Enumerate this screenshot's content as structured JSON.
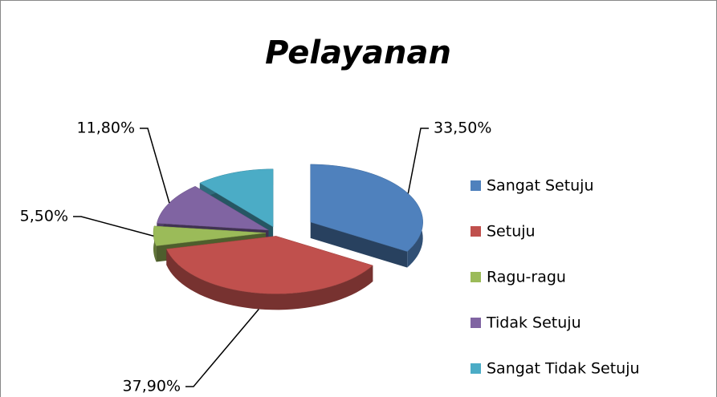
{
  "chart_data": {
    "type": "pie",
    "title": "Pelayanan",
    "categories": [
      "Sangat Setuju",
      "Setuju",
      "Ragu-ragu",
      "Tidak Setuju",
      "Sangat Tidak Setuju"
    ],
    "values": [
      33.5,
      37.9,
      5.5,
      11.8,
      11.3
    ],
    "value_labels": [
      "33,50%",
      "37,90%",
      "5,50%",
      "11,80%",
      null
    ],
    "colors": [
      "#4f81bd",
      "#c0504d",
      "#9bbb59",
      "#8064a2",
      "#4bacc6"
    ],
    "legend": "right"
  }
}
